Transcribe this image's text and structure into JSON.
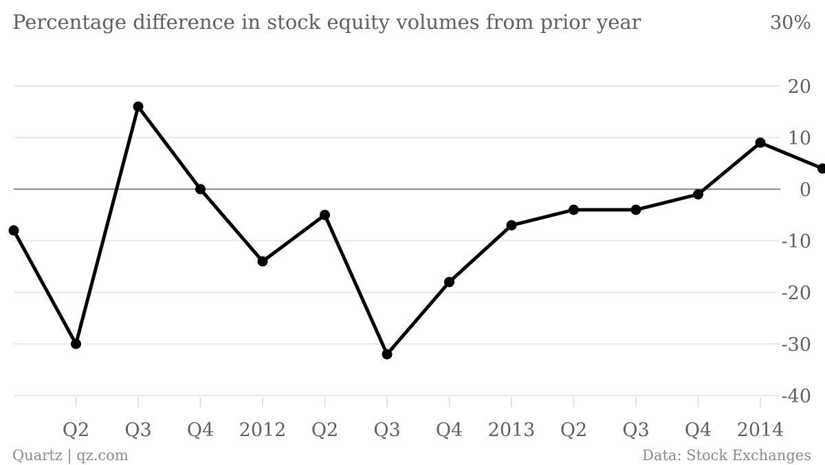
{
  "chart_data": {
    "type": "line",
    "title": "Percentage difference in stock equity volumes from prior year",
    "y_unit_label": "30%",
    "x_tick_labels": [
      "Q2",
      "Q3",
      "Q4",
      "2012",
      "Q2",
      "Q3",
      "Q4",
      "2013",
      "Q2",
      "Q3",
      "Q4",
      "2014"
    ],
    "y_ticks": [
      20,
      10,
      0,
      -10,
      -20,
      -30,
      -40
    ],
    "ylim": [
      -40,
      30
    ],
    "grid": true,
    "series": [
      {
        "values": [
          -8,
          -30,
          16,
          0,
          -14,
          -5,
          -32,
          -18,
          -7,
          -4,
          -4,
          -1,
          9,
          4
        ]
      }
    ]
  },
  "footer": {
    "source_left": "Quartz | qz.com",
    "source_right": "Data: Stock Exchanges"
  }
}
